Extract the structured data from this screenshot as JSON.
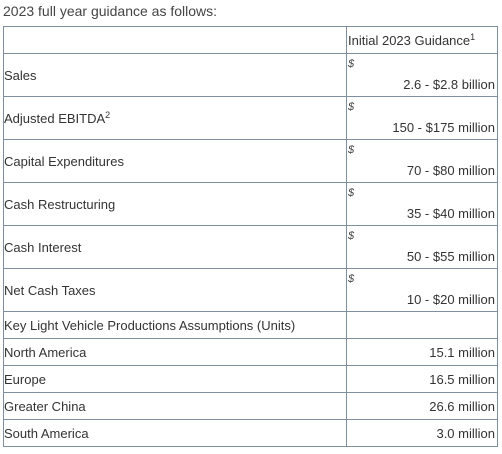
{
  "intro": "2023 full year guidance as follows:",
  "table": {
    "header": {
      "label": "",
      "value": "Initial 2023 Guidance",
      "value_sup": "1"
    },
    "rows": [
      {
        "label": "Sales",
        "label_sup": "",
        "currency": "$",
        "value": "2.6 - $2.8 billion"
      },
      {
        "label": "Adjusted EBITDA",
        "label_sup": "2",
        "currency": "$",
        "value": "150 - $175 million"
      },
      {
        "label": "Capital Expenditures",
        "label_sup": "",
        "currency": "$",
        "value": "70 - $80 million"
      },
      {
        "label": "Cash Restructuring",
        "label_sup": "",
        "currency": "$",
        "value": "35 - $40 million"
      },
      {
        "label": "Cash Interest",
        "label_sup": "",
        "currency": "$",
        "value": "50 - $55 million"
      },
      {
        "label": "Net Cash Taxes",
        "label_sup": "",
        "currency": "$",
        "value": "10 - $20 million"
      }
    ],
    "section_label": "Key Light Vehicle Productions Assumptions (Units)",
    "assumptions": [
      {
        "label": "North America",
        "value": "15.1 million"
      },
      {
        "label": "Europe",
        "value": "16.5 million"
      },
      {
        "label": "Greater China",
        "value": "26.6 million"
      },
      {
        "label": "South America",
        "value": "3.0 million"
      }
    ]
  }
}
